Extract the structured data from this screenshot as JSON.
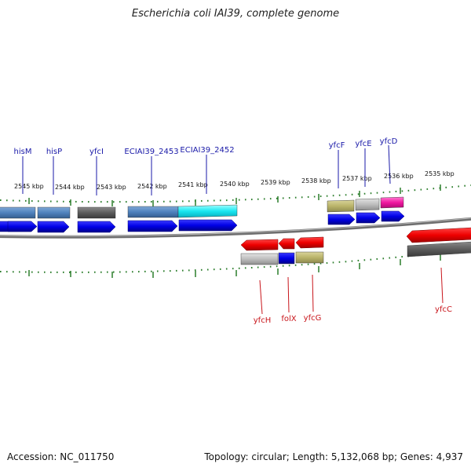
{
  "title": "Escherichia coli IAI39, complete genome",
  "footer": {
    "accession": "Accession: NC_011750",
    "stats": "Topology: circular; Length: 5,132,068 bp; Genes: 4,937"
  },
  "colors": {
    "cds_forward": "#0a0ae0",
    "cds_reverse": "#e8141c",
    "backbone": "#7a7a7a",
    "ticks": "#1f7a1f",
    "label_top": "#1a1aa8",
    "label_bottom": "#c8151b"
  },
  "scale": {
    "unit": "kbp",
    "top_ticks": [
      "2545 kbp",
      "2544 kbp",
      "2543 kbp",
      "2542 kbp",
      "2541 kbp",
      "2540 kbp",
      "2539 kbp",
      "2538 kbp",
      "2537 kbp",
      "2536 kbp",
      "2535 kbp"
    ]
  },
  "genes_top": [
    {
      "name": "hisM"
    },
    {
      "name": "hisP"
    },
    {
      "name": "yfcI"
    },
    {
      "name": "ECIAI39_2453"
    },
    {
      "name": "ECIAI39_2452"
    },
    {
      "name": "yfcF"
    },
    {
      "name": "yfcE"
    },
    {
      "name": "yfcD"
    }
  ],
  "genes_bottom": [
    {
      "name": "yfcH"
    },
    {
      "name": "folX"
    },
    {
      "name": "yfcG"
    },
    {
      "name": "yfcC"
    }
  ]
}
